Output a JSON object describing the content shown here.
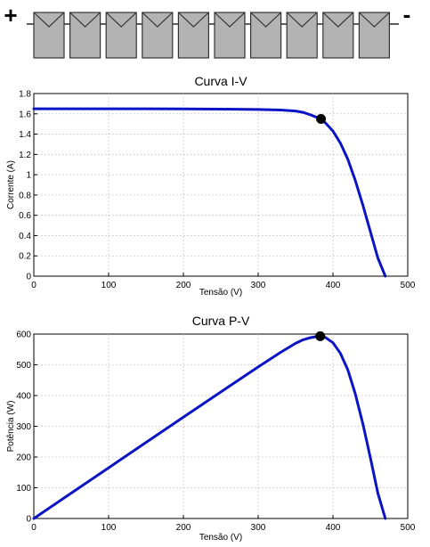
{
  "module_string": {
    "positive_terminal": "+",
    "negative_terminal": "-",
    "panel_count": 10,
    "panel_color": "#b3b3b3"
  },
  "chart_data": [
    {
      "type": "line",
      "title": "Curva I-V",
      "xlabel": "Tensão (V)",
      "ylabel": "Corrente (A)",
      "xlim": [
        0,
        500
      ],
      "ylim": [
        0,
        1.8
      ],
      "xticks": [
        0,
        100,
        200,
        300,
        400,
        500
      ],
      "yticks": [
        0,
        0.2,
        0.4,
        0.6,
        0.8,
        1,
        1.2,
        1.4,
        1.6,
        1.8
      ],
      "grid": true,
      "series": [
        {
          "color": "#0b14c4",
          "x": [
            0,
            50,
            100,
            150,
            200,
            250,
            300,
            330,
            350,
            360,
            370,
            380,
            385,
            390,
            400,
            410,
            420,
            430,
            440,
            450,
            460,
            470
          ],
          "y": [
            1.65,
            1.65,
            1.65,
            1.65,
            1.648,
            1.646,
            1.643,
            1.638,
            1.628,
            1.615,
            1.59,
            1.56,
            1.54,
            1.51,
            1.43,
            1.31,
            1.15,
            0.94,
            0.7,
            0.44,
            0.18,
            0.0
          ]
        }
      ],
      "marker": {
        "x": 384,
        "y": 1.55,
        "color": "#000000"
      }
    },
    {
      "type": "line",
      "title": "Curva P-V",
      "xlabel": "Tensão (V)",
      "ylabel": "Potência (W)",
      "xlim": [
        0,
        500
      ],
      "ylim": [
        0,
        600
      ],
      "xticks": [
        0,
        100,
        200,
        300,
        400,
        500
      ],
      "yticks": [
        0,
        100,
        200,
        300,
        400,
        500,
        600
      ],
      "grid": true,
      "series": [
        {
          "color": "#0b14c4",
          "x": [
            0,
            50,
            100,
            150,
            200,
            250,
            300,
            330,
            350,
            360,
            370,
            380,
            385,
            390,
            400,
            410,
            420,
            430,
            440,
            450,
            460,
            470
          ],
          "y": [
            0,
            82.5,
            165,
            247.5,
            329.6,
            411.5,
            492.9,
            540.5,
            569.8,
            581.4,
            588.3,
            592.8,
            592.9,
            588.9,
            572,
            537.1,
            483,
            404.2,
            308,
            198,
            82.8,
            0
          ]
        }
      ],
      "marker": {
        "x": 383,
        "y": 593,
        "color": "#000000"
      }
    }
  ]
}
